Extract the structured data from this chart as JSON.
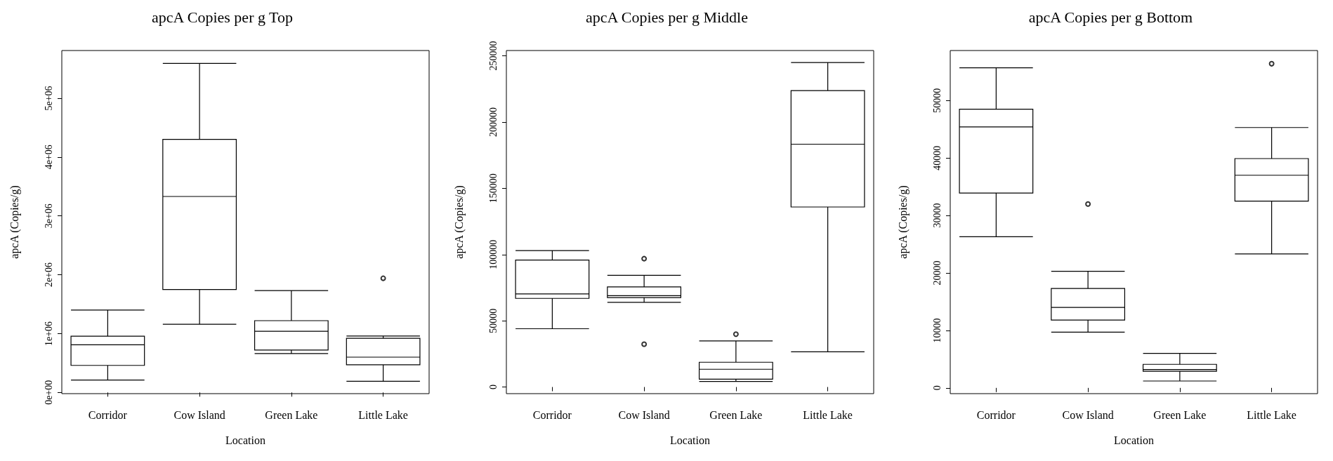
{
  "chart_data": [
    {
      "type": "box",
      "title": "apcA Copies per g Top",
      "xlabel": "Location",
      "ylabel": "apcA (Copies/g)",
      "categories": [
        "Corridor",
        "Cow Island",
        "Green Lake",
        "Little Lake"
      ],
      "boxes": [
        {
          "low": 210000,
          "q1": 460000,
          "median": 810000,
          "q3": 955000,
          "high": 1400000
        },
        {
          "low": 1160000,
          "q1": 1750000,
          "median": 3330000,
          "q3": 4300000,
          "high": 5590000
        },
        {
          "low": 660000,
          "q1": 720000,
          "median": 1040000,
          "q3": 1220000,
          "high": 1730000
        },
        {
          "low": 190000,
          "q1": 470000,
          "median": 600000,
          "q3": 920000,
          "high": 960000,
          "outliers": [
            1940000
          ]
        }
      ],
      "ylim": [
        -20000,
        5810000
      ],
      "yticks": [
        {
          "value": 0,
          "label": "0e+00"
        },
        {
          "value": 1000000,
          "label": "1e+06"
        },
        {
          "value": 2000000,
          "label": "2e+06"
        },
        {
          "value": 3000000,
          "label": "3e+06"
        },
        {
          "value": 4000000,
          "label": "4e+06"
        },
        {
          "value": 5000000,
          "label": "5e+06"
        }
      ],
      "grid": false
    },
    {
      "type": "box",
      "title": "apcA Copies per g Middle",
      "xlabel": "Location",
      "ylabel": "apcA (Copies/g)",
      "categories": [
        "Corridor",
        "Cow Island",
        "Green Lake",
        "Little Lake"
      ],
      "boxes": [
        {
          "low": 44000,
          "q1": 66900,
          "median": 70300,
          "q3": 95800,
          "high": 103000
        },
        {
          "low": 63900,
          "q1": 67500,
          "median": 69000,
          "q3": 75600,
          "high": 84300,
          "outliers": [
            96900,
            32300
          ]
        },
        {
          "low": 4200,
          "q1": 5900,
          "median": 13400,
          "q3": 18700,
          "high": 34800,
          "outliers": [
            39900
          ]
        },
        {
          "low": 26600,
          "q1": 135900,
          "median": 183300,
          "q3": 223700,
          "high": 244900
        }
      ],
      "ylim": [
        -5000,
        254000
      ],
      "yticks": [
        0,
        50000,
        100000,
        150000,
        200000,
        250000
      ],
      "grid": false
    },
    {
      "type": "box",
      "title": "apcA Copies per g Bottom",
      "xlabel": "Location",
      "ylabel": "apcA (Copies/g)",
      "categories": [
        "Corridor",
        "Cow Island",
        "Green Lake",
        "Little Lake"
      ],
      "boxes": [
        {
          "low": 26300,
          "q1": 33900,
          "median": 45400,
          "q3": 48500,
          "high": 55700
        },
        {
          "low": 9700,
          "q1": 11800,
          "median": 14000,
          "q3": 17300,
          "high": 20300,
          "outliers": [
            32000
          ]
        },
        {
          "low": 1200,
          "q1": 2900,
          "median": 3200,
          "q3": 4100,
          "high": 6000
        },
        {
          "low": 23300,
          "q1": 32500,
          "median": 37000,
          "q3": 39900,
          "high": 45300,
          "outliers": [
            56400
          ]
        }
      ],
      "ylim": [
        -1000,
        58700
      ],
      "yticks": [
        0,
        10000,
        20000,
        30000,
        40000,
        50000
      ],
      "grid": false
    }
  ]
}
